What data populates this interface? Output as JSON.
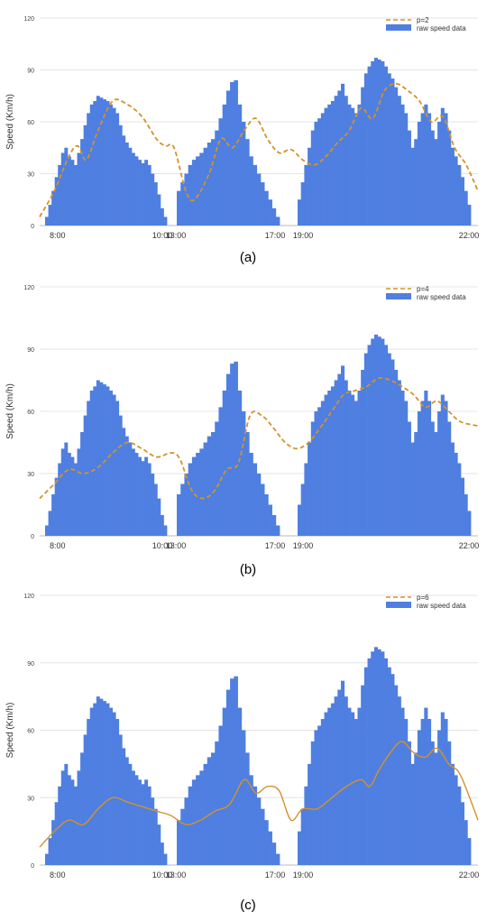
{
  "chart_data": [
    {
      "type": "bar",
      "caption": "(a)",
      "ylabel": "Speed (Km/h)",
      "xlabel": "",
      "ylim": [
        0,
        120
      ],
      "yticks": [
        0,
        30,
        60,
        90,
        120
      ],
      "xtick_labels": [
        "8:00",
        "10:00",
        "13:00",
        "17:00",
        "19:00",
        "22:00"
      ],
      "grid": true,
      "legend": {
        "position": "top-right",
        "entries": [
          "p=2",
          "raw speed data"
        ]
      },
      "series": [
        {
          "name": "raw speed data",
          "kind": "bar",
          "color": "#4f7fe0",
          "segments": [
            {
              "label": "8:00–10:00",
              "values": [
                5,
                12,
                20,
                28,
                35,
                42,
                45,
                40,
                38,
                35,
                42,
                50,
                58,
                65,
                70,
                72,
                75,
                74,
                73,
                72,
                70,
                68,
                65,
                58,
                52,
                48,
                45,
                42,
                40,
                38,
                36,
                38,
                35,
                30,
                25,
                18,
                10,
                5
              ]
            },
            {
              "label": "13:00–17:00",
              "values": [
                20,
                25,
                30,
                35,
                38,
                40,
                42,
                45,
                48,
                50,
                55,
                62,
                70,
                78,
                83,
                84,
                70,
                60,
                50,
                40,
                35,
                30,
                25,
                20,
                15,
                10,
                5
              ]
            },
            {
              "label": "19:00–22:00",
              "values": [
                15,
                25,
                35,
                45,
                55,
                60,
                62,
                65,
                68,
                70,
                72,
                75,
                78,
                82,
                75,
                70,
                68,
                65,
                70,
                80,
                88,
                92,
                95,
                97,
                96,
                95,
                92,
                88,
                85,
                80,
                75,
                70,
                65,
                55,
                45,
                50,
                60,
                65,
                70,
                65,
                55,
                50,
                60,
                68,
                65,
                55,
                45,
                40,
                35,
                28,
                20,
                12
              ]
            }
          ]
        },
        {
          "name": "p=2",
          "kind": "line",
          "color": "#d4922a",
          "points": [
            [
              0,
              5
            ],
            [
              0.5,
              20
            ],
            [
              1,
              40
            ],
            [
              1.3,
              46
            ],
            [
              1.6,
              38
            ],
            [
              2,
              55
            ],
            [
              2.5,
              72
            ],
            [
              3,
              70
            ],
            [
              3.5,
              63
            ],
            [
              4,
              50
            ],
            [
              4.3,
              46
            ],
            [
              4.6,
              45
            ],
            [
              5,
              20
            ],
            [
              5.3,
              15
            ],
            [
              5.8,
              30
            ],
            [
              6.2,
              50
            ],
            [
              6.6,
              45
            ],
            [
              7,
              55
            ],
            [
              7.4,
              62
            ],
            [
              7.8,
              50
            ],
            [
              8.2,
              42
            ],
            [
              8.6,
              44
            ],
            [
              9,
              38
            ],
            [
              9.4,
              35
            ],
            [
              9.8,
              40
            ],
            [
              10.2,
              48
            ],
            [
              10.6,
              55
            ],
            [
              11,
              68
            ],
            [
              11.4,
              62
            ],
            [
              11.8,
              78
            ],
            [
              12.2,
              82
            ],
            [
              12.6,
              78
            ],
            [
              13,
              72
            ],
            [
              13.4,
              60
            ],
            [
              13.8,
              63
            ],
            [
              14.2,
              45
            ],
            [
              14.6,
              35
            ],
            [
              15,
              20
            ]
          ]
        }
      ]
    },
    {
      "type": "bar",
      "caption": "(b)",
      "ylabel": "Speed (Km/h)",
      "xlabel": "",
      "ylim": [
        0,
        120
      ],
      "yticks": [
        0,
        30,
        60,
        90,
        120
      ],
      "xtick_labels": [
        "8:00",
        "10:00",
        "13:00",
        "17:00",
        "19:00",
        "22:00"
      ],
      "grid": true,
      "legend": {
        "position": "top-right",
        "entries": [
          "p=4",
          "raw speed data"
        ]
      },
      "series": [
        {
          "name": "raw speed data",
          "kind": "bar",
          "color": "#4f7fe0",
          "segments": [
            {
              "label": "8:00–10:00",
              "values": [
                5,
                12,
                20,
                28,
                35,
                42,
                45,
                40,
                38,
                35,
                42,
                50,
                58,
                65,
                70,
                72,
                75,
                74,
                73,
                72,
                70,
                68,
                65,
                58,
                52,
                48,
                45,
                42,
                40,
                38,
                36,
                38,
                35,
                30,
                25,
                18,
                10,
                5
              ]
            },
            {
              "label": "13:00–17:00",
              "values": [
                20,
                25,
                30,
                35,
                38,
                40,
                42,
                45,
                48,
                50,
                55,
                62,
                70,
                78,
                83,
                84,
                70,
                60,
                50,
                40,
                35,
                30,
                25,
                20,
                15,
                10,
                5
              ]
            },
            {
              "label": "19:00–22:00",
              "values": [
                15,
                25,
                35,
                45,
                55,
                60,
                62,
                65,
                68,
                70,
                72,
                75,
                78,
                82,
                75,
                70,
                68,
                65,
                70,
                80,
                88,
                92,
                95,
                97,
                96,
                95,
                92,
                88,
                85,
                80,
                75,
                70,
                65,
                55,
                45,
                50,
                60,
                65,
                70,
                65,
                55,
                50,
                60,
                68,
                65,
                55,
                45,
                40,
                35,
                28,
                20,
                12
              ]
            }
          ]
        },
        {
          "name": "p=4",
          "kind": "line",
          "color": "#d4922a",
          "points": [
            [
              0,
              18
            ],
            [
              0.5,
              25
            ],
            [
              1,
              32
            ],
            [
              1.5,
              30
            ],
            [
              2,
              33
            ],
            [
              2.5,
              40
            ],
            [
              3,
              45
            ],
            [
              3.5,
              42
            ],
            [
              4,
              38
            ],
            [
              4.5,
              40
            ],
            [
              4.8,
              37
            ],
            [
              5.2,
              22
            ],
            [
              5.6,
              18
            ],
            [
              6,
              22
            ],
            [
              6.4,
              32
            ],
            [
              6.8,
              35
            ],
            [
              7.2,
              58
            ],
            [
              7.6,
              58
            ],
            [
              8,
              52
            ],
            [
              8.4,
              45
            ],
            [
              8.8,
              42
            ],
            [
              9.2,
              45
            ],
            [
              9.6,
              52
            ],
            [
              10,
              60
            ],
            [
              10.4,
              68
            ],
            [
              10.8,
              70
            ],
            [
              11.2,
              72
            ],
            [
              11.6,
              76
            ],
            [
              12,
              75
            ],
            [
              12.4,
              72
            ],
            [
              12.8,
              68
            ],
            [
              13.2,
              62
            ],
            [
              13.6,
              65
            ],
            [
              14,
              60
            ],
            [
              14.4,
              55
            ],
            [
              15,
              53
            ]
          ]
        }
      ]
    },
    {
      "type": "bar",
      "caption": "(c)",
      "ylabel": "Speed (Km/h)",
      "xlabel": "",
      "ylim": [
        0,
        120
      ],
      "yticks": [
        0,
        30,
        60,
        90,
        120
      ],
      "xtick_labels": [
        "8:00",
        "10:00",
        "13:00",
        "17:00",
        "19:00",
        "22:00"
      ],
      "grid": true,
      "legend": {
        "position": "top-right",
        "entries": [
          "p=6",
          "raw speed data"
        ]
      },
      "series": [
        {
          "name": "raw speed data",
          "kind": "bar",
          "color": "#4f7fe0",
          "segments": [
            {
              "label": "8:00–10:00",
              "values": [
                5,
                12,
                20,
                28,
                35,
                42,
                45,
                40,
                38,
                35,
                42,
                50,
                58,
                65,
                70,
                72,
                75,
                74,
                73,
                72,
                70,
                68,
                65,
                58,
                52,
                48,
                45,
                42,
                40,
                38,
                36,
                38,
                35,
                30,
                25,
                18,
                10,
                5
              ]
            },
            {
              "label": "13:00–17:00",
              "values": [
                20,
                25,
                30,
                35,
                38,
                40,
                42,
                45,
                48,
                50,
                55,
                62,
                70,
                78,
                83,
                84,
                70,
                60,
                50,
                40,
                35,
                30,
                25,
                20,
                15,
                10,
                5
              ]
            },
            {
              "label": "19:00–22:00",
              "values": [
                15,
                25,
                35,
                45,
                55,
                60,
                62,
                65,
                68,
                70,
                72,
                75,
                78,
                82,
                75,
                70,
                68,
                65,
                70,
                80,
                88,
                92,
                95,
                97,
                96,
                95,
                92,
                88,
                85,
                80,
                75,
                70,
                65,
                55,
                45,
                50,
                60,
                65,
                70,
                65,
                55,
                50,
                60,
                68,
                65,
                55,
                45,
                40,
                35,
                28,
                20,
                12
              ]
            }
          ]
        },
        {
          "name": "p=6",
          "kind": "line",
          "color": "#d4922a",
          "points": [
            [
              0,
              8
            ],
            [
              0.5,
              15
            ],
            [
              1,
              20
            ],
            [
              1.5,
              18
            ],
            [
              2,
              25
            ],
            [
              2.5,
              30
            ],
            [
              3,
              28
            ],
            [
              3.5,
              26
            ],
            [
              4,
              24
            ],
            [
              4.5,
              22
            ],
            [
              5,
              18
            ],
            [
              5.5,
              20
            ],
            [
              6,
              24
            ],
            [
              6.5,
              27
            ],
            [
              7,
              38
            ],
            [
              7.4,
              32
            ],
            [
              7.8,
              35
            ],
            [
              8.2,
              33
            ],
            [
              8.6,
              20
            ],
            [
              9,
              25
            ],
            [
              9.5,
              25
            ],
            [
              10,
              30
            ],
            [
              10.5,
              35
            ],
            [
              11,
              38
            ],
            [
              11.3,
              35
            ],
            [
              11.6,
              42
            ],
            [
              12,
              50
            ],
            [
              12.4,
              55
            ],
            [
              12.8,
              50
            ],
            [
              13.2,
              48
            ],
            [
              13.6,
              52
            ],
            [
              14,
              45
            ],
            [
              14.4,
              40
            ],
            [
              15,
              20
            ]
          ]
        }
      ]
    }
  ]
}
